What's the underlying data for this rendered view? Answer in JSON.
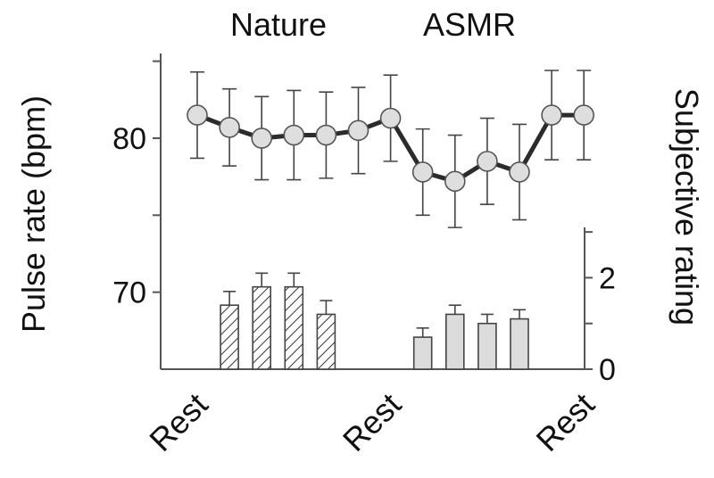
{
  "chart_data": {
    "type": "line+bar",
    "group_labels": [
      "Nature",
      "ASMR"
    ],
    "left_axis": {
      "label": "Pulse rate (bpm)",
      "tick_labels": [
        "70",
        "80"
      ],
      "ticks": [
        70,
        75,
        80,
        85
      ],
      "range": [
        65,
        85.5
      ]
    },
    "right_axis": {
      "label": "Subjective rating",
      "tick_labels": [
        "0",
        "2"
      ],
      "ticks": [
        0,
        1,
        2,
        3
      ],
      "range": [
        0,
        3.1
      ]
    },
    "x_labels": [
      "Rest",
      "Rest",
      "Rest"
    ],
    "x_label_positions": [
      0,
      6,
      12
    ],
    "pulse_series": {
      "x": [
        0,
        1,
        2,
        3,
        4,
        5,
        6,
        7,
        8,
        9,
        10,
        11,
        12
      ],
      "mean": [
        81.5,
        80.7,
        80.0,
        80.2,
        80.2,
        80.5,
        81.3,
        77.8,
        77.2,
        78.5,
        77.8,
        81.5,
        81.5
      ],
      "error": [
        2.8,
        2.5,
        2.7,
        2.9,
        2.8,
        2.8,
        2.8,
        2.8,
        3.0,
        2.8,
        3.1,
        2.9,
        2.9
      ]
    },
    "rating_series": [
      {
        "group": "Nature",
        "pattern": "hatched",
        "x": [
          1,
          2,
          3,
          4
        ],
        "values": [
          1.4,
          1.8,
          1.8,
          1.2
        ],
        "error": [
          0.3,
          0.3,
          0.3,
          0.3
        ]
      },
      {
        "group": "ASMR",
        "pattern": "solid-gray",
        "x": [
          7,
          8,
          9,
          10
        ],
        "values": [
          0.7,
          1.2,
          1.0,
          1.1
        ],
        "error": [
          0.2,
          0.2,
          0.2,
          0.2
        ]
      }
    ],
    "colors": {
      "marker_fill": "#dedede",
      "line": "#2b2b2b",
      "asmr_bar": "#dcdcdc",
      "hatch": "#333333"
    }
  }
}
